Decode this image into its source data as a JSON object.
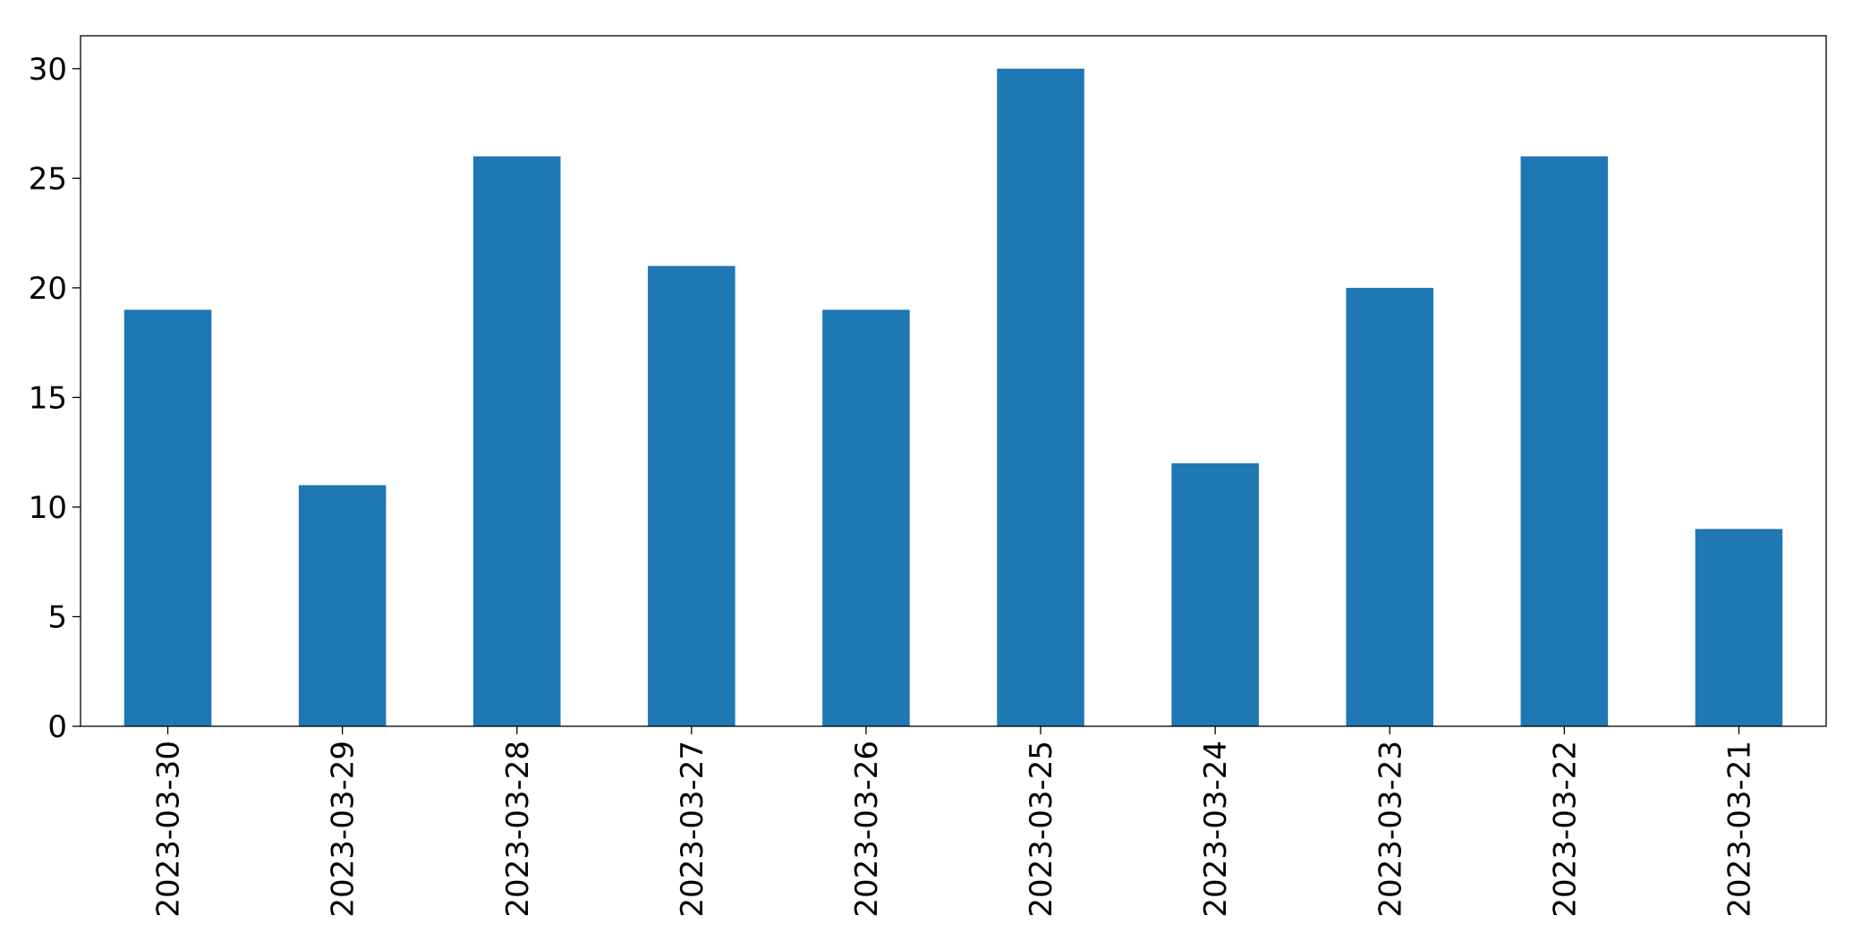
{
  "chart_data": {
    "type": "bar",
    "categories": [
      "2023-03-30",
      "2023-03-29",
      "2023-03-28",
      "2023-03-27",
      "2023-03-26",
      "2023-03-25",
      "2023-03-24",
      "2023-03-23",
      "2023-03-22",
      "2023-03-21"
    ],
    "values": [
      19,
      11,
      26,
      21,
      19,
      30,
      12,
      20,
      26,
      9
    ],
    "color": "#1f77b4",
    "ylim": [
      0,
      31.5
    ],
    "yticks": [
      0,
      5,
      10,
      15,
      20,
      25,
      30
    ],
    "grid": false
  }
}
